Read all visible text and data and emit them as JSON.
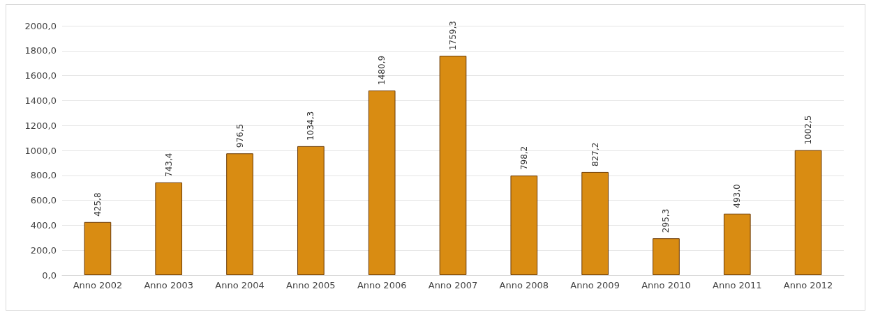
{
  "chart_data": {
    "type": "bar",
    "categories": [
      "Anno 2002",
      "Anno 2003",
      "Anno 2004",
      "Anno 2005",
      "Anno 2006",
      "Anno 2007",
      "Anno 2008",
      "Anno 2009",
      "Anno 2010",
      "Anno 2011",
      "Anno 2012"
    ],
    "values": [
      425.8,
      743.4,
      976.5,
      1034.3,
      1480.9,
      1759.3,
      798.2,
      827.2,
      295.3,
      493.0,
      1002.5
    ],
    "value_labels": [
      "425,8",
      "743,4",
      "976,5",
      "1034,3",
      "1480,9",
      "1759,3",
      "798,2",
      "827,2",
      "295,3",
      "493,0",
      "1002,5"
    ],
    "color": "#d98c12",
    "ylim": [
      0,
      2000
    ],
    "yticks": [
      {
        "value": 0,
        "label": "0,0"
      },
      {
        "value": 200,
        "label": "200,0"
      },
      {
        "value": 400,
        "label": "400,0"
      },
      {
        "value": 600,
        "label": "600,0"
      },
      {
        "value": 800,
        "label": "800,0"
      },
      {
        "value": 1000,
        "label": "1000,0"
      },
      {
        "value": 1200,
        "label": "1200,0"
      },
      {
        "value": 1400,
        "label": "1400,0"
      },
      {
        "value": 1600,
        "label": "1600,0"
      },
      {
        "value": 1800,
        "label": "1800,0"
      },
      {
        "value": 2000,
        "label": "2000,0"
      }
    ],
    "grid": true
  }
}
